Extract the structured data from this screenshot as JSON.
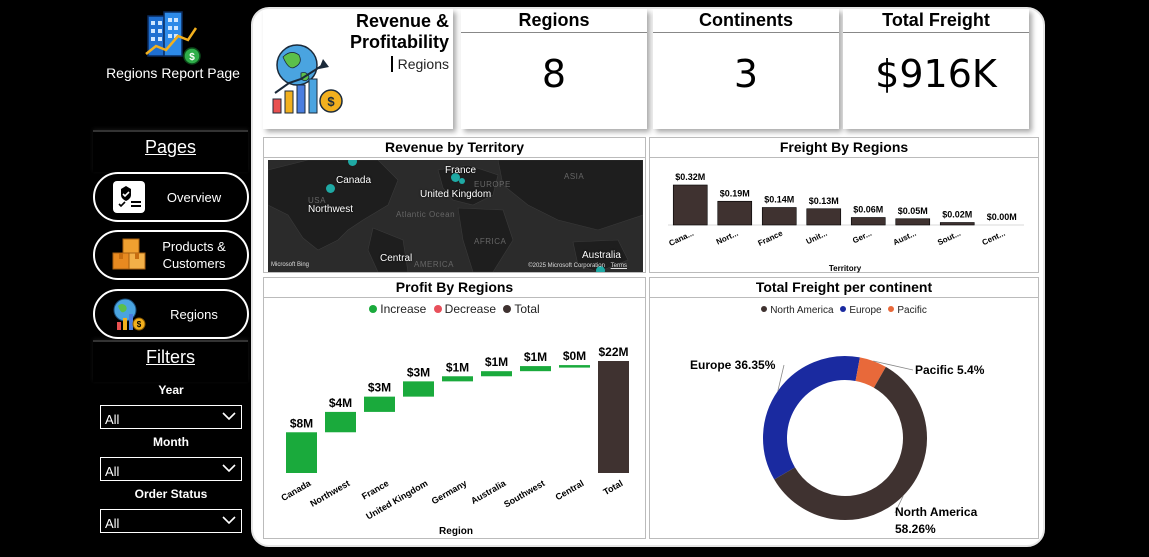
{
  "sidebar": {
    "app_title": "Regions Report Page",
    "pages_title": "Pages",
    "filters_title": "Filters",
    "nav": [
      {
        "label": "Overview",
        "icon": "overview-icon"
      },
      {
        "label": "Products & Customers",
        "icon": "boxes-icon"
      },
      {
        "label": "Regions",
        "icon": "globe-chart-icon"
      }
    ],
    "filters": [
      {
        "label": "Year",
        "value": "All"
      },
      {
        "label": "Month",
        "value": "All"
      },
      {
        "label": "Order Status",
        "value": "All"
      }
    ]
  },
  "header": {
    "title": "Revenue & Profitability",
    "subtitle": "Regions"
  },
  "kpis": [
    {
      "label": "Regions",
      "value": "8"
    },
    {
      "label": "Continents",
      "value": "3"
    },
    {
      "label": "Total Freight",
      "value": "$916K"
    }
  ],
  "map": {
    "title": "Revenue by Territory",
    "labels": [
      "Canada",
      "Northwest",
      "France",
      "United Kingdom",
      "Central",
      "Australia"
    ],
    "faint_labels": [
      "EUROPE",
      "USA",
      "Atlantic Ocean",
      "AFRICA",
      "AMERICA",
      "ASIA"
    ],
    "attribution_logo": "Microsoft Bing",
    "attribution_copy": "©2025 Microsoft Corporation",
    "attribution_terms": "Terms"
  },
  "colors": {
    "increase": "#1aaa3c",
    "decrease": "#e8505b",
    "total": "#3f3230",
    "freight_bar": "#3f3230",
    "north_america": "#3f3230",
    "europe": "#1a2aa0",
    "pacific": "#e8693a"
  },
  "chart_data": [
    {
      "type": "bar",
      "title": "Freight By Regions",
      "xlabel": "Territory",
      "ylabel": "",
      "categories": [
        "Cana...",
        "Nort...",
        "France",
        "Unit...",
        "Ger...",
        "Aust...",
        "Sout...",
        "Cent..."
      ],
      "values": [
        0.32,
        0.19,
        0.14,
        0.13,
        0.06,
        0.05,
        0.02,
        0.0
      ],
      "data_labels": [
        "$0.32M",
        "$0.19M",
        "$0.14M",
        "$0.13M",
        "$0.06M",
        "$0.05M",
        "$0.02M",
        "$0.00M"
      ],
      "ylim": [
        0,
        0.32
      ]
    },
    {
      "type": "bar",
      "subtype": "waterfall",
      "title": "Profit By Regions",
      "xlabel": "Region",
      "ylabel": "",
      "legend": [
        "Increase",
        "Decrease",
        "Total"
      ],
      "legend_position": "top",
      "categories": [
        "Canada",
        "Northwest",
        "France",
        "United Kingdom",
        "Germany",
        "Australia",
        "Southwest",
        "Central",
        "Total"
      ],
      "values": [
        8,
        4,
        3,
        3,
        1,
        1,
        1,
        0,
        22
      ],
      "data_labels": [
        "$8M",
        "$4M",
        "$3M",
        "$3M",
        "$1M",
        "$1M",
        "$1M",
        "$0M",
        "$22M"
      ],
      "kinds": [
        "increase",
        "increase",
        "increase",
        "increase",
        "increase",
        "increase",
        "increase",
        "increase",
        "total"
      ],
      "ylim": [
        0,
        22
      ]
    },
    {
      "type": "pie",
      "subtype": "donut",
      "title": "Total Freight per continent",
      "legend": [
        "North America",
        "Europe",
        "Pacific"
      ],
      "legend_position": "top",
      "series": [
        {
          "name": "North America",
          "value": 58.26,
          "label": "North America",
          "label_value": "58.26%"
        },
        {
          "name": "Europe",
          "value": 36.35,
          "label": "Europe",
          "label_value": "36.35%"
        },
        {
          "name": "Pacific",
          "value": 5.4,
          "label": "Pacific",
          "label_value": "5.4%"
        }
      ]
    }
  ]
}
